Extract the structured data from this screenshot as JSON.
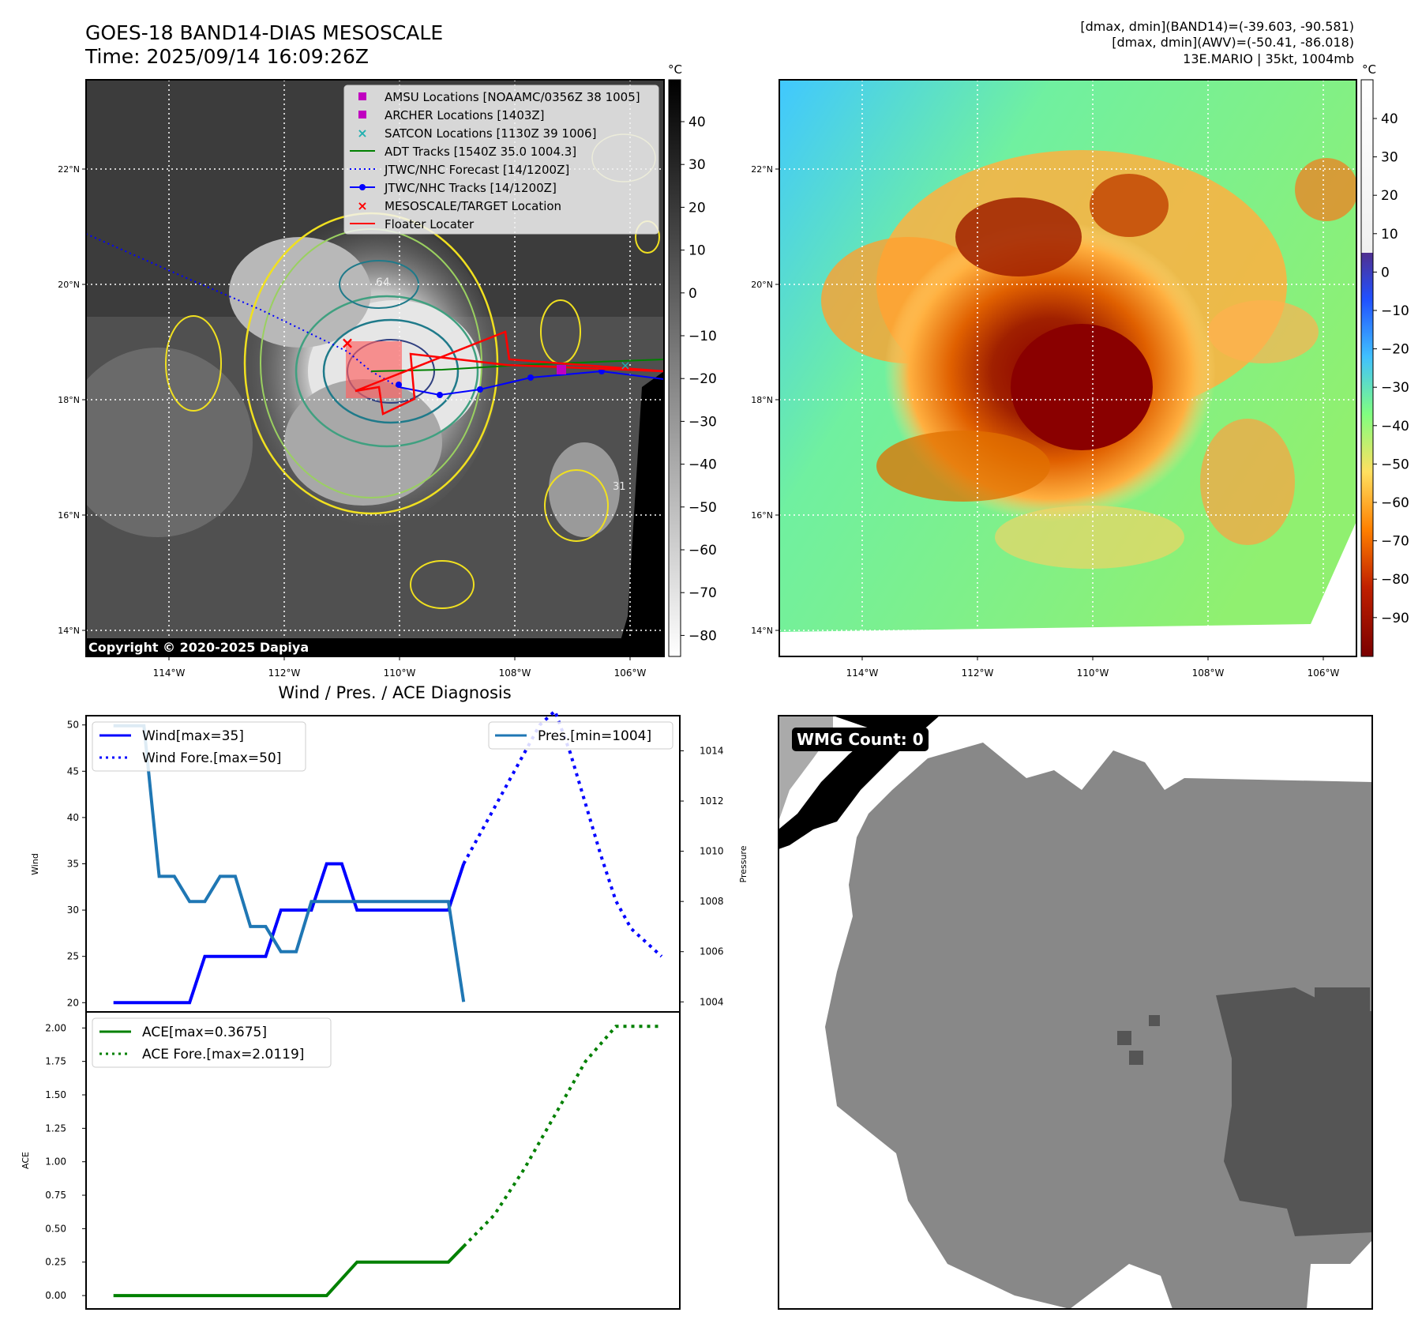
{
  "header": {
    "title_line1": "GOES-18 BAND14-DIAS MESOSCALE",
    "title_line2": "Time: 2025/09/14 16:09:26Z",
    "info_line1": "[dmax, dmin](BAND14)=(-39.603, -90.581)",
    "info_line2": "[dmax, dmin](AWV)=(-50.41, -86.018)",
    "info_line3": "13E.MARIO | 35kt, 1004mb"
  },
  "ir_map": {
    "lon_ticks": [
      "114°W",
      "112°W",
      "110°W",
      "108°W",
      "106°W"
    ],
    "lat_ticks": [
      "22°N",
      "20°N",
      "18°N",
      "16°N",
      "14°N"
    ],
    "copyright": "Copyright © 2020-2025 Dapiya",
    "colorbar_unit": "°C",
    "colorbar_ticks": [
      "40",
      "30",
      "20",
      "10",
      "0",
      "−10",
      "−20",
      "−30",
      "−40",
      "−50",
      "−60",
      "−70",
      "−80"
    ],
    "legend": [
      {
        "label": "AMSU Locations [NOAAMC/0356Z 38 1005]",
        "marker": "square",
        "color": "#c000c0"
      },
      {
        "label": "ARCHER Locations [1403Z]",
        "marker": "square",
        "color": "#c000c0"
      },
      {
        "label": "SATCON Locations [1130Z 39 1006]",
        "marker": "x",
        "color": "#20b0b0"
      },
      {
        "label": "ADT Tracks [1540Z 35.0 1004.3]",
        "marker": "line",
        "color": "#008000"
      },
      {
        "label": "JTWC/NHC Forecast [14/1200Z]",
        "marker": "dotted",
        "color": "#0000ff"
      },
      {
        "label": "JTWC/NHC Tracks [14/1200Z]",
        "marker": "line-dot",
        "color": "#0000ff"
      },
      {
        "label": "MESOSCALE/TARGET Location",
        "marker": "x",
        "color": "#ff0000"
      },
      {
        "label": "Floater Locater",
        "marker": "line",
        "color": "#ff0000"
      }
    ],
    "contour_labels": [
      "64",
      "31"
    ]
  },
  "awv_map": {
    "lon_ticks": [
      "114°W",
      "112°W",
      "110°W",
      "108°W",
      "106°W"
    ],
    "lat_ticks": [
      "22°N",
      "20°N",
      "18°N",
      "16°N",
      "14°N"
    ],
    "colorbar_unit": "°C",
    "colorbar_ticks": [
      "40",
      "30",
      "20",
      "10",
      "0",
      "−10",
      "−20",
      "−30",
      "−40",
      "−50",
      "−60",
      "−70",
      "−80",
      "−90"
    ]
  },
  "wmg": {
    "label": "WMG Count: 0"
  },
  "chart_data": [
    {
      "type": "line",
      "title": "Wind / Pres. / ACE Diagnosis",
      "ylabel": "Wind",
      "y2label": "Pressure",
      "ylim": [
        19,
        51
      ],
      "y2lim": [
        1003.6,
        1015.4
      ],
      "yticks": [
        20,
        25,
        30,
        35,
        40,
        45,
        50
      ],
      "y2ticks": [
        1004,
        1006,
        1008,
        1010,
        1012,
        1014
      ],
      "x": [
        0,
        1,
        2,
        3,
        4,
        5,
        6,
        7,
        8,
        9,
        10,
        11,
        12,
        13,
        14,
        15,
        16,
        17,
        18,
        19,
        20,
        21,
        22,
        23,
        24,
        25,
        26,
        27,
        28,
        29,
        30,
        31,
        32,
        33,
        34,
        35,
        36
      ],
      "xlim": [
        -1.8,
        37.2
      ],
      "series": [
        {
          "name": "Wind[max=35]",
          "axis": "left",
          "style": "solid",
          "color": "#0000ff",
          "x": [
            0,
            1,
            2,
            3,
            4,
            5,
            6,
            7,
            8,
            9,
            10,
            11,
            12,
            13,
            14,
            15,
            16,
            17,
            18,
            19,
            20,
            21,
            22,
            23
          ],
          "values": [
            20,
            20,
            20,
            20,
            20,
            20,
            25,
            25,
            25,
            25,
            25,
            30,
            30,
            30,
            35,
            35,
            30,
            30,
            30,
            30,
            30,
            30,
            30,
            35
          ]
        },
        {
          "name": "Wind Fore.[max=50]",
          "axis": "left",
          "style": "dotted",
          "color": "#0000ff",
          "x": [
            23,
            24,
            25,
            26,
            27,
            28,
            29,
            30,
            31,
            32,
            33,
            34,
            35,
            36
          ],
          "values": [
            35,
            38,
            41,
            44,
            47,
            50,
            51.5,
            47,
            41.5,
            36,
            31,
            28,
            26.5,
            25
          ]
        },
        {
          "name": "Pres.[min=1004]",
          "axis": "right",
          "style": "solid",
          "color": "#1f77b4",
          "x": [
            0,
            1,
            2,
            3,
            4,
            5,
            6,
            7,
            8,
            9,
            10,
            11,
            12,
            13,
            14,
            15,
            16,
            17,
            18,
            19,
            20,
            21,
            22,
            23
          ],
          "values": [
            1015,
            1015,
            1015,
            1009,
            1009,
            1008,
            1008,
            1009,
            1009,
            1007,
            1007,
            1006,
            1006,
            1008,
            1008,
            1008,
            1008,
            1008,
            1008,
            1008,
            1008,
            1008,
            1008,
            1004
          ]
        }
      ],
      "legend_left": "upper-left",
      "legend_right": "upper-right"
    },
    {
      "type": "line",
      "ylabel": "ACE",
      "ylim": [
        -0.1,
        2.12
      ],
      "yticks": [
        "0.00",
        "0.25",
        "0.50",
        "0.75",
        "1.00",
        "1.25",
        "1.50",
        "1.75",
        "2.00"
      ],
      "xlim": [
        -1.8,
        37.2
      ],
      "series": [
        {
          "name": "ACE[max=0.3675]",
          "style": "solid",
          "color": "#008000",
          "x": [
            0,
            14,
            16,
            22,
            23
          ],
          "values": [
            0,
            0,
            0.25,
            0.25,
            0.3675
          ]
        },
        {
          "name": "ACE Fore.[max=2.0119]",
          "style": "dotted",
          "color": "#008000",
          "x": [
            23,
            25,
            27,
            29,
            31,
            33,
            34,
            35,
            36
          ],
          "values": [
            0.3675,
            0.6,
            0.95,
            1.35,
            1.75,
            2.0119,
            2.0119,
            2.0119,
            2.0119
          ]
        }
      ],
      "legend": "upper-left"
    }
  ]
}
